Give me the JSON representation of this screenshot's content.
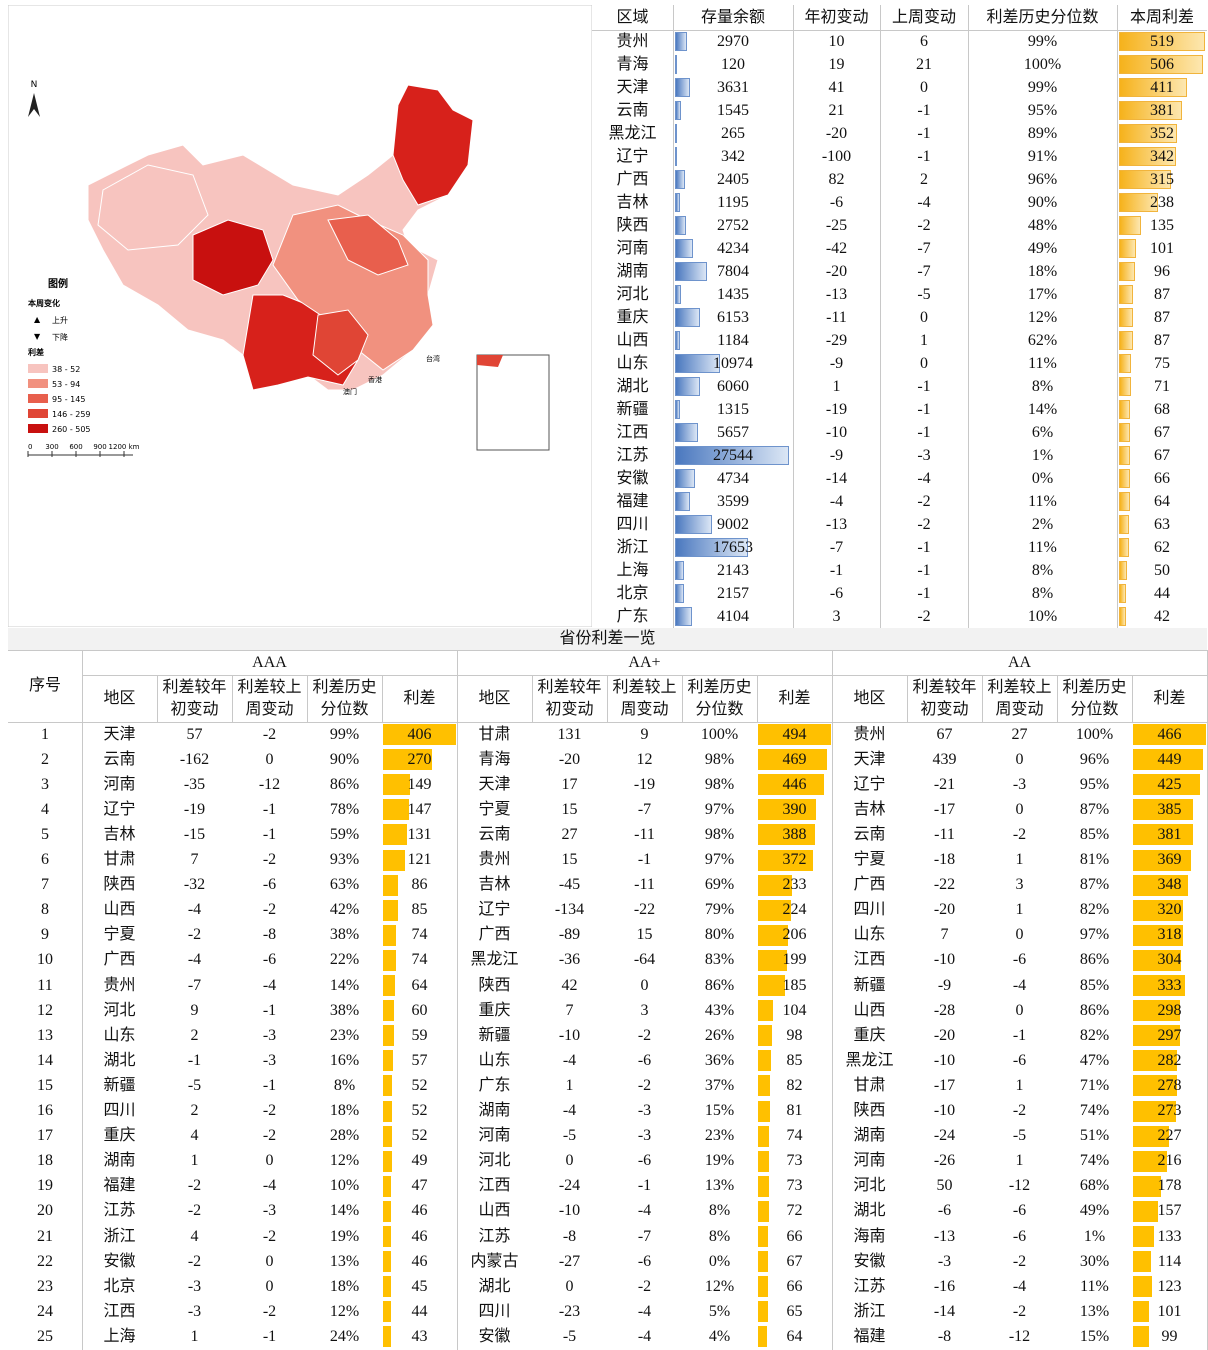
{
  "map": {
    "north": "N",
    "legend_title": "图例",
    "change_title": "本周变化",
    "up": "上升",
    "down": "下降",
    "spread_title": "利差",
    "bins": [
      "38 - 52",
      "53 - 94",
      "95 - 145",
      "146 - 259",
      "260 - 505"
    ],
    "scale": [
      "0",
      "300",
      "600",
      "900",
      "1200 km"
    ],
    "labels": [
      "香港",
      "澳门",
      "台湾"
    ]
  },
  "top_table": {
    "headers": [
      "区域",
      "存量余额",
      "年初变动",
      "上周变动",
      "利差历史分位数",
      "本周利差"
    ],
    "rows": [
      [
        "贵州",
        2970,
        10,
        6,
        "99%",
        519
      ],
      [
        "青海",
        120,
        19,
        21,
        "100%",
        506
      ],
      [
        "天津",
        3631,
        41,
        0,
        "99%",
        411
      ],
      [
        "云南",
        1545,
        21,
        -1,
        "95%",
        381
      ],
      [
        "黑龙江",
        265,
        -20,
        -1,
        "89%",
        352
      ],
      [
        "辽宁",
        342,
        -100,
        -1,
        "91%",
        342
      ],
      [
        "广西",
        2405,
        82,
        2,
        "96%",
        315
      ],
      [
        "吉林",
        1195,
        -6,
        -4,
        "90%",
        238
      ],
      [
        "陕西",
        2752,
        -25,
        -2,
        "48%",
        135
      ],
      [
        "河南",
        4234,
        -42,
        -7,
        "49%",
        101
      ],
      [
        "湖南",
        7804,
        -20,
        -7,
        "18%",
        96
      ],
      [
        "河北",
        1435,
        -13,
        -5,
        "17%",
        87
      ],
      [
        "重庆",
        6153,
        -11,
        0,
        "12%",
        87
      ],
      [
        "山西",
        1184,
        -29,
        1,
        "62%",
        87
      ],
      [
        "山东",
        10974,
        -9,
        0,
        "11%",
        75
      ],
      [
        "湖北",
        6060,
        1,
        -1,
        "8%",
        71
      ],
      [
        "新疆",
        1315,
        -19,
        -1,
        "14%",
        68
      ],
      [
        "江西",
        5657,
        -10,
        -1,
        "6%",
        67
      ],
      [
        "江苏",
        27544,
        -9,
        -3,
        "1%",
        67
      ],
      [
        "安徽",
        4734,
        -14,
        -4,
        "0%",
        66
      ],
      [
        "福建",
        3599,
        -4,
        -2,
        "11%",
        64
      ],
      [
        "四川",
        9002,
        -13,
        -2,
        "2%",
        63
      ],
      [
        "浙江",
        17653,
        -7,
        -1,
        "11%",
        62
      ],
      [
        "上海",
        2143,
        -1,
        -1,
        "8%",
        50
      ],
      [
        "北京",
        2157,
        -6,
        -1,
        "8%",
        44
      ],
      [
        "广东",
        4104,
        3,
        -2,
        "10%",
        42
      ]
    ]
  },
  "bottom_table": {
    "title": "省份利差一览",
    "index_header": "序号",
    "index": [
      1,
      2,
      3,
      4,
      5,
      6,
      7,
      8,
      9,
      10,
      11,
      12,
      13,
      14,
      15,
      16,
      17,
      18,
      19,
      20,
      21,
      22,
      23,
      24,
      25
    ],
    "headers": [
      "地区",
      "利差较年初变动",
      "利差较上周变动",
      "利差历史分位数",
      "利差"
    ],
    "groups": [
      {
        "name": "AAA",
        "rows": [
          [
            "天津",
            57,
            -2,
            "99%",
            406
          ],
          [
            "云南",
            -162,
            0,
            "90%",
            270
          ],
          [
            "河南",
            -35,
            -12,
            "86%",
            149
          ],
          [
            "辽宁",
            -19,
            -1,
            "78%",
            147
          ],
          [
            "吉林",
            -15,
            -1,
            "59%",
            131
          ],
          [
            "甘肃",
            7,
            -2,
            "93%",
            121
          ],
          [
            "陕西",
            -32,
            -6,
            "63%",
            86
          ],
          [
            "山西",
            -4,
            -2,
            "42%",
            85
          ],
          [
            "宁夏",
            -2,
            -8,
            "38%",
            74
          ],
          [
            "广西",
            -4,
            -6,
            "22%",
            74
          ],
          [
            "贵州",
            -7,
            -4,
            "14%",
            64
          ],
          [
            "河北",
            9,
            -1,
            "38%",
            60
          ],
          [
            "山东",
            2,
            -3,
            "23%",
            59
          ],
          [
            "湖北",
            -1,
            -3,
            "16%",
            57
          ],
          [
            "新疆",
            -5,
            -1,
            "8%",
            52
          ],
          [
            "四川",
            2,
            -2,
            "18%",
            52
          ],
          [
            "重庆",
            4,
            -2,
            "28%",
            52
          ],
          [
            "湖南",
            1,
            0,
            "12%",
            49
          ],
          [
            "福建",
            -2,
            -4,
            "10%",
            47
          ],
          [
            "江苏",
            -2,
            -3,
            "14%",
            46
          ],
          [
            "浙江",
            4,
            -2,
            "19%",
            46
          ],
          [
            "安徽",
            -2,
            0,
            "13%",
            46
          ],
          [
            "北京",
            -3,
            0,
            "18%",
            45
          ],
          [
            "江西",
            -3,
            -2,
            "12%",
            44
          ],
          [
            "上海",
            1,
            -1,
            "24%",
            43
          ]
        ]
      },
      {
        "name": "AA+",
        "rows": [
          [
            "甘肃",
            131,
            9,
            "100%",
            494
          ],
          [
            "青海",
            -20,
            12,
            "98%",
            469
          ],
          [
            "天津",
            17,
            -19,
            "98%",
            446
          ],
          [
            "宁夏",
            15,
            -7,
            "97%",
            390
          ],
          [
            "云南",
            27,
            -11,
            "98%",
            388
          ],
          [
            "贵州",
            15,
            -1,
            "97%",
            372
          ],
          [
            "吉林",
            -45,
            -11,
            "69%",
            233
          ],
          [
            "辽宁",
            -134,
            -22,
            "79%",
            224
          ],
          [
            "广西",
            -89,
            15,
            "80%",
            206
          ],
          [
            "黑龙江",
            -36,
            -64,
            "83%",
            199
          ],
          [
            "陕西",
            42,
            0,
            "86%",
            185
          ],
          [
            "重庆",
            7,
            3,
            "43%",
            104
          ],
          [
            "新疆",
            -10,
            -2,
            "26%",
            98
          ],
          [
            "山东",
            -4,
            -6,
            "36%",
            85
          ],
          [
            "广东",
            1,
            -2,
            "37%",
            82
          ],
          [
            "湖南",
            -4,
            -3,
            "15%",
            81
          ],
          [
            "河南",
            -5,
            -3,
            "23%",
            74
          ],
          [
            "河北",
            0,
            -6,
            "19%",
            73
          ],
          [
            "江西",
            -24,
            -1,
            "13%",
            73
          ],
          [
            "山西",
            -10,
            -4,
            "8%",
            72
          ],
          [
            "江苏",
            -8,
            -7,
            "8%",
            66
          ],
          [
            "内蒙古",
            -27,
            -6,
            "0%",
            67
          ],
          [
            "湖北",
            0,
            -2,
            "12%",
            66
          ],
          [
            "四川",
            -23,
            -4,
            "5%",
            65
          ],
          [
            "安徽",
            -5,
            -4,
            "4%",
            64
          ]
        ]
      },
      {
        "name": "AA",
        "rows": [
          [
            "贵州",
            67,
            27,
            "100%",
            466
          ],
          [
            "天津",
            439,
            0,
            "96%",
            449
          ],
          [
            "辽宁",
            -21,
            -3,
            "95%",
            425
          ],
          [
            "吉林",
            -17,
            0,
            "87%",
            385
          ],
          [
            "云南",
            -11,
            -2,
            "85%",
            381
          ],
          [
            "宁夏",
            -18,
            1,
            "81%",
            369
          ],
          [
            "广西",
            -22,
            3,
            "87%",
            348
          ],
          [
            "四川",
            -20,
            1,
            "82%",
            320
          ],
          [
            "山东",
            7,
            0,
            "97%",
            318
          ],
          [
            "江西",
            -10,
            -6,
            "86%",
            304
          ],
          [
            "新疆",
            -9,
            -4,
            "85%",
            333
          ],
          [
            "山西",
            -28,
            0,
            "86%",
            298
          ],
          [
            "重庆",
            -20,
            -1,
            "82%",
            297
          ],
          [
            "黑龙江",
            -10,
            -6,
            "47%",
            282
          ],
          [
            "甘肃",
            -17,
            1,
            "71%",
            278
          ],
          [
            "陕西",
            -10,
            -2,
            "74%",
            273
          ],
          [
            "湖南",
            -24,
            -5,
            "51%",
            227
          ],
          [
            "河南",
            -26,
            1,
            "74%",
            216
          ],
          [
            "河北",
            50,
            -12,
            "68%",
            178
          ],
          [
            "湖北",
            -6,
            -6,
            "49%",
            157
          ],
          [
            "海南",
            -13,
            -6,
            "1%",
            133
          ],
          [
            "安徽",
            -3,
            -2,
            "30%",
            114
          ],
          [
            "江苏",
            -16,
            -4,
            "11%",
            123
          ],
          [
            "浙江",
            -14,
            -2,
            "13%",
            101
          ],
          [
            "福建",
            -8,
            -12,
            "15%",
            99
          ]
        ]
      }
    ]
  }
}
